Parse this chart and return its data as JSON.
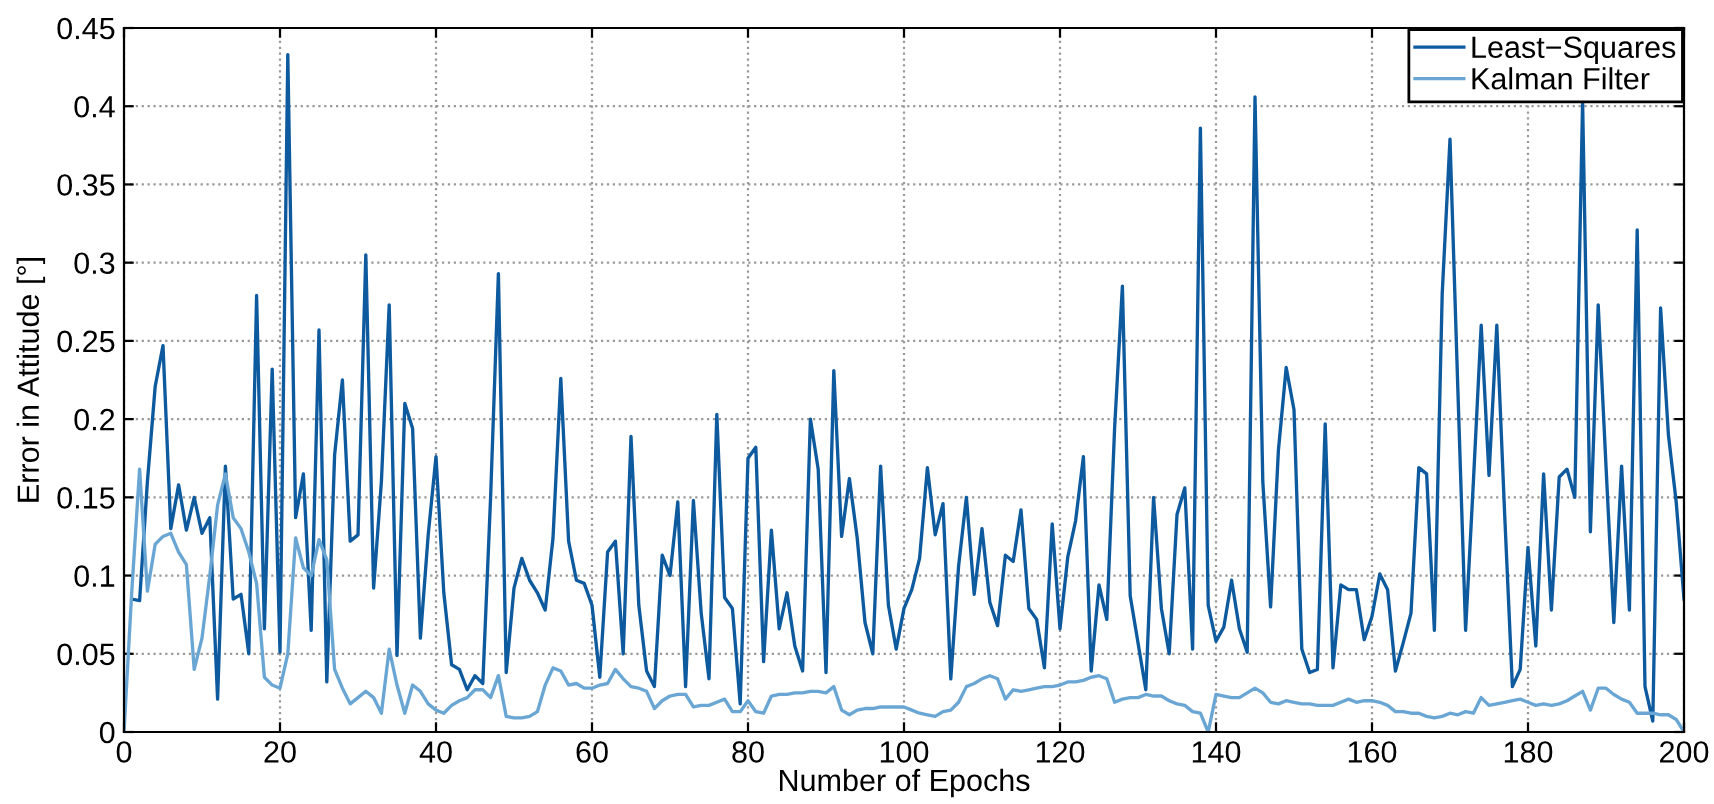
{
  "chart_data": {
    "type": "line",
    "xlabel": "Number of Epochs",
    "ylabel": "Error in Attitude [°]",
    "xlim": [
      0,
      200
    ],
    "xticks": [
      0,
      20,
      40,
      60,
      80,
      100,
      120,
      140,
      160,
      180,
      200
    ],
    "ylim": [
      0,
      0.45
    ],
    "yticks": [
      0,
      0.05,
      0.1,
      0.15,
      0.2,
      0.25,
      0.3,
      0.35,
      0.4,
      0.45
    ],
    "grid": true,
    "legend": "top right",
    "line_style": "solid",
    "marker": "none",
    "series": [
      {
        "name": "Least−Squares",
        "color": "#0e5a9e",
        "x": [
          1,
          2,
          3,
          4,
          5,
          6,
          7,
          8,
          9,
          10,
          11,
          12,
          13,
          14,
          15,
          16,
          17,
          18,
          19,
          20,
          21,
          22,
          23,
          24,
          25,
          26,
          27,
          28,
          29,
          30,
          31,
          32,
          33,
          34,
          35,
          36,
          37,
          38,
          39,
          40,
          41,
          42,
          43,
          44,
          45,
          46,
          47,
          48,
          49,
          50,
          51,
          52,
          53,
          54,
          55,
          56,
          57,
          58,
          59,
          60,
          61,
          62,
          63,
          64,
          65,
          66,
          67,
          68,
          69,
          70,
          71,
          72,
          73,
          74,
          75,
          76,
          77,
          78,
          79,
          80,
          81,
          82,
          83,
          84,
          85,
          86,
          87,
          88,
          89,
          90,
          91,
          92,
          93,
          94,
          95,
          96,
          97,
          98,
          99,
          100,
          101,
          102,
          103,
          104,
          105,
          106,
          107,
          108,
          109,
          110,
          111,
          112,
          113,
          114,
          115,
          116,
          117,
          118,
          119,
          120,
          121,
          122,
          123,
          124,
          125,
          126,
          127,
          128,
          129,
          130,
          131,
          132,
          133,
          134,
          135,
          136,
          137,
          138,
          139,
          140,
          141,
          142,
          143,
          144,
          145,
          146,
          147,
          148,
          149,
          150,
          151,
          152,
          153,
          154,
          155,
          156,
          157,
          158,
          159,
          160,
          161,
          162,
          163,
          164,
          165,
          166,
          167,
          168,
          169,
          170,
          171,
          172,
          173,
          174,
          175,
          176,
          177,
          178,
          179,
          180,
          181,
          182,
          183,
          184,
          185,
          186,
          187,
          188,
          189,
          190,
          191,
          192,
          193,
          194,
          195,
          196,
          197,
          198,
          199,
          200
        ],
        "values": [
          0.085,
          0.084,
          0.16,
          0.221,
          0.247,
          0.13,
          0.158,
          0.129,
          0.15,
          0.127,
          0.137,
          0.021,
          0.17,
          0.085,
          0.088,
          0.05,
          0.279,
          0.066,
          0.232,
          0.051,
          0.433,
          0.137,
          0.165,
          0.065,
          0.257,
          0.032,
          0.177,
          0.225,
          0.122,
          0.126,
          0.305,
          0.092,
          0.16,
          0.273,
          0.049,
          0.21,
          0.194,
          0.06,
          0.126,
          0.176,
          0.089,
          0.043,
          0.04,
          0.027,
          0.036,
          0.031,
          0.15,
          0.293,
          0.038,
          0.092,
          0.111,
          0.097,
          0.089,
          0.078,
          0.124,
          0.226,
          0.122,
          0.097,
          0.095,
          0.081,
          0.035,
          0.115,
          0.122,
          0.05,
          0.189,
          0.081,
          0.039,
          0.029,
          0.113,
          0.1,
          0.147,
          0.029,
          0.148,
          0.076,
          0.034,
          0.203,
          0.086,
          0.079,
          0.018,
          0.175,
          0.182,
          0.045,
          0.129,
          0.066,
          0.089,
          0.055,
          0.039,
          0.2,
          0.168,
          0.038,
          0.231,
          0.125,
          0.162,
          0.124,
          0.07,
          0.05,
          0.17,
          0.081,
          0.053,
          0.079,
          0.091,
          0.111,
          0.169,
          0.126,
          0.146,
          0.034,
          0.106,
          0.15,
          0.088,
          0.13,
          0.083,
          0.068,
          0.113,
          0.109,
          0.142,
          0.079,
          0.072,
          0.041,
          0.133,
          0.066,
          0.112,
          0.135,
          0.176,
          0.039,
          0.094,
          0.072,
          0.194,
          0.285,
          0.087,
          0.057,
          0.027,
          0.15,
          0.079,
          0.05,
          0.139,
          0.156,
          0.053,
          0.386,
          0.081,
          0.058,
          0.067,
          0.097,
          0.066,
          0.051,
          0.406,
          0.16,
          0.08,
          0.18,
          0.233,
          0.206,
          0.053,
          0.038,
          0.04,
          0.197,
          0.041,
          0.094,
          0.091,
          0.091,
          0.059,
          0.074,
          0.101,
          0.091,
          0.039,
          0.057,
          0.076,
          0.169,
          0.165,
          0.065,
          0.28,
          0.379,
          0.22,
          0.065,
          0.16,
          0.26,
          0.164,
          0.26,
          0.14,
          0.029,
          0.04,
          0.118,
          0.055,
          0.165,
          0.078,
          0.163,
          0.168,
          0.15,
          0.403,
          0.128,
          0.273,
          0.17,
          0.07,
          0.17,
          0.078,
          0.321,
          0.029,
          0.007,
          0.271,
          0.19,
          0.147,
          0.085
        ]
      },
      {
        "name": "Kalman Filter",
        "color": "#6aa6d4",
        "x": [
          0,
          1,
          2,
          3,
          4,
          5,
          6,
          7,
          8,
          9,
          10,
          11,
          12,
          13,
          14,
          15,
          16,
          17,
          18,
          19,
          20,
          21,
          22,
          23,
          24,
          25,
          26,
          27,
          28,
          29,
          30,
          31,
          32,
          33,
          34,
          35,
          36,
          37,
          38,
          39,
          40,
          41,
          42,
          43,
          44,
          45,
          46,
          47,
          48,
          49,
          50,
          51,
          52,
          53,
          54,
          55,
          56,
          57,
          58,
          59,
          60,
          61,
          62,
          63,
          64,
          65,
          66,
          67,
          68,
          69,
          70,
          71,
          72,
          73,
          74,
          75,
          76,
          77,
          78,
          79,
          80,
          81,
          82,
          83,
          84,
          85,
          86,
          87,
          88,
          89,
          90,
          91,
          92,
          93,
          94,
          95,
          96,
          97,
          98,
          99,
          100,
          101,
          102,
          103,
          104,
          105,
          106,
          107,
          108,
          109,
          110,
          111,
          112,
          113,
          114,
          115,
          116,
          117,
          118,
          119,
          120,
          121,
          122,
          123,
          124,
          125,
          126,
          127,
          128,
          129,
          130,
          131,
          132,
          133,
          134,
          135,
          136,
          137,
          138,
          139,
          140,
          141,
          142,
          143,
          144,
          145,
          146,
          147,
          148,
          149,
          150,
          151,
          152,
          153,
          154,
          155,
          156,
          157,
          158,
          159,
          160,
          161,
          162,
          163,
          164,
          165,
          166,
          167,
          168,
          169,
          170,
          171,
          172,
          173,
          174,
          175,
          176,
          177,
          178,
          179,
          180,
          181,
          182,
          183,
          184,
          185,
          186,
          187,
          188,
          189,
          190,
          191,
          192,
          193,
          194,
          195,
          196,
          197,
          198,
          199,
          200
        ],
        "values": [
          0,
          0.09,
          0.168,
          0.09,
          0.12,
          0.125,
          0.127,
          0.115,
          0.107,
          0.04,
          0.06,
          0.1,
          0.145,
          0.165,
          0.137,
          0.13,
          0.115,
          0.095,
          0.035,
          0.03,
          0.028,
          0.05,
          0.124,
          0.105,
          0.1,
          0.123,
          0.11,
          0.04,
          0.028,
          0.018,
          0.022,
          0.026,
          0.022,
          0.012,
          0.053,
          0.03,
          0.012,
          0.03,
          0.026,
          0.018,
          0.014,
          0.012,
          0.017,
          0.02,
          0.022,
          0.027,
          0.027,
          0.022,
          0.036,
          0.01,
          0.009,
          0.009,
          0.01,
          0.013,
          0.03,
          0.041,
          0.039,
          0.03,
          0.031,
          0.028,
          0.028,
          0.03,
          0.031,
          0.04,
          0.034,
          0.029,
          0.028,
          0.026,
          0.015,
          0.02,
          0.023,
          0.024,
          0.024,
          0.016,
          0.017,
          0.017,
          0.019,
          0.021,
          0.013,
          0.013,
          0.02,
          0.013,
          0.012,
          0.023,
          0.024,
          0.024,
          0.025,
          0.025,
          0.026,
          0.026,
          0.025,
          0.029,
          0.014,
          0.011,
          0.014,
          0.015,
          0.015,
          0.016,
          0.016,
          0.016,
          0.016,
          0.014,
          0.012,
          0.011,
          0.01,
          0.013,
          0.014,
          0.019,
          0.029,
          0.031,
          0.034,
          0.036,
          0.034,
          0.021,
          0.027,
          0.026,
          0.027,
          0.028,
          0.029,
          0.029,
          0.03,
          0.032,
          0.032,
          0.033,
          0.035,
          0.036,
          0.034,
          0.019,
          0.021,
          0.022,
          0.022,
          0.024,
          0.023,
          0.023,
          0.02,
          0.018,
          0.017,
          0.013,
          0.012,
          0.0,
          0.024,
          0.023,
          0.022,
          0.022,
          0.025,
          0.028,
          0.025,
          0.019,
          0.018,
          0.02,
          0.019,
          0.018,
          0.018,
          0.017,
          0.017,
          0.017,
          0.019,
          0.021,
          0.019,
          0.02,
          0.02,
          0.019,
          0.017,
          0.013,
          0.013,
          0.012,
          0.012,
          0.01,
          0.009,
          0.01,
          0.012,
          0.011,
          0.013,
          0.012,
          0.022,
          0.017,
          0.018,
          0.019,
          0.02,
          0.021,
          0.019,
          0.017,
          0.018,
          0.017,
          0.018,
          0.02,
          0.023,
          0.026,
          0.014,
          0.028,
          0.028,
          0.024,
          0.021,
          0.019,
          0.012,
          0.012,
          0.012,
          0.011,
          0.011,
          0.008,
          0.0
        ]
      }
    ]
  }
}
